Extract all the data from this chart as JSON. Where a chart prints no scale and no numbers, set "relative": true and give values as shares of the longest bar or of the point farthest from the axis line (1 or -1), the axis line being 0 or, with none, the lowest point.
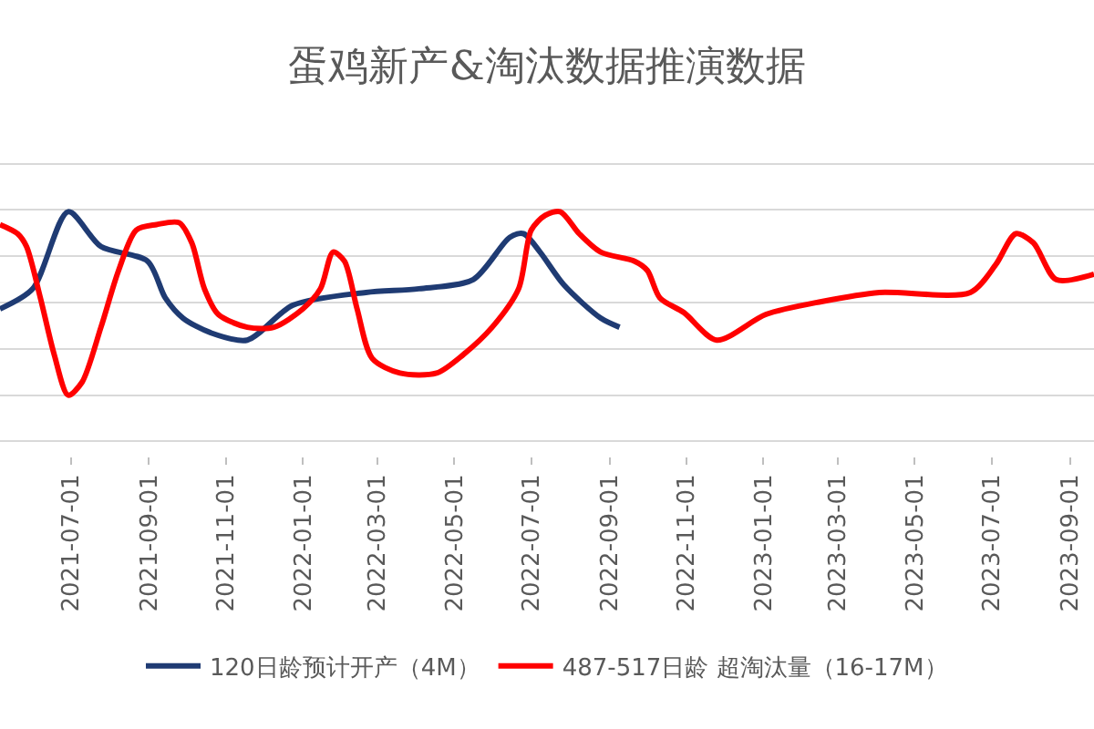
{
  "chart_data": {
    "type": "line",
    "title": "蛋鸡新产&淘汰数据推演数据",
    "relative": true,
    "grid": "y",
    "legend": "bottom",
    "line_style": "solid",
    "marker": "none",
    "xlim": [
      "2021-05-06",
      "2023-09-20"
    ],
    "xticks": [
      "2021-07-01",
      "2021-09-01",
      "2021-11-01",
      "2022-01-01",
      "2022-03-01",
      "2022-05-01",
      "2022-07-01",
      "2022-09-01",
      "2022-11-01",
      "2023-01-01",
      "2023-03-01",
      "2023-05-01",
      "2023-07-01",
      "2023-09-01"
    ],
    "series": [
      {
        "name": "120日龄预计开产（4M）",
        "color": "#1f3b73",
        "x": [
          "2021-05-06",
          "2021-06-01",
          "2021-06-29",
          "2021-07-25",
          "2021-08-31",
          "2021-09-14",
          "2021-09-28",
          "2021-10-20",
          "2021-11-18",
          "2021-12-24",
          "2022-02-20",
          "2022-04-03",
          "2022-05-16",
          "2022-06-14",
          "2022-06-25",
          "2022-07-08",
          "2022-07-27",
          "2022-08-25",
          "2022-09-09"
        ],
        "values": [
          0.47,
          0.58,
          1.0,
          0.81,
          0.73,
          0.53,
          0.42,
          0.34,
          0.3,
          0.49,
          0.56,
          0.58,
          0.63,
          0.86,
          0.88,
          0.78,
          0.6,
          0.42,
          0.37
        ]
      },
      {
        "name": "487-517日龄 超淘汰量（16-17M）",
        "color": "#ff0000",
        "x": [
          "2021-05-06",
          "2021-05-20",
          "2021-05-27",
          "2021-06-07",
          "2021-06-18",
          "2021-06-29",
          "2021-07-10",
          "2021-07-25",
          "2021-08-08",
          "2021-08-22",
          "2021-09-07",
          "2021-09-25",
          "2021-10-05",
          "2021-10-15",
          "2021-10-26",
          "2021-11-18",
          "2021-12-09",
          "2022-01-01",
          "2022-01-15",
          "2022-01-25",
          "2022-02-03",
          "2022-02-13",
          "2022-02-25",
          "2022-03-19",
          "2022-04-17",
          "2022-05-08",
          "2022-05-31",
          "2022-06-21",
          "2022-07-01",
          "2022-07-12",
          "2022-07-24",
          "2022-08-08",
          "2022-08-25",
          "2022-09-21",
          "2022-10-01",
          "2022-10-11",
          "2022-10-30",
          "2022-11-25",
          "2023-01-03",
          "2023-02-16",
          "2023-04-03",
          "2023-06-14",
          "2023-07-04",
          "2023-07-20",
          "2023-08-03",
          "2023-08-21",
          "2023-09-20"
        ],
        "values": [
          0.93,
          0.88,
          0.81,
          0.53,
          0.22,
          0,
          0.07,
          0.37,
          0.68,
          0.9,
          0.93,
          0.94,
          0.83,
          0.58,
          0.44,
          0.37,
          0.37,
          0.47,
          0.58,
          0.78,
          0.73,
          0.47,
          0.2,
          0.12,
          0.12,
          0.22,
          0.37,
          0.58,
          0.9,
          0.98,
          1.0,
          0.88,
          0.78,
          0.73,
          0.68,
          0.53,
          0.45,
          0.3,
          0.44,
          0.51,
          0.56,
          0.56,
          0.71,
          0.88,
          0.83,
          0.63,
          0.66
        ]
      }
    ]
  }
}
